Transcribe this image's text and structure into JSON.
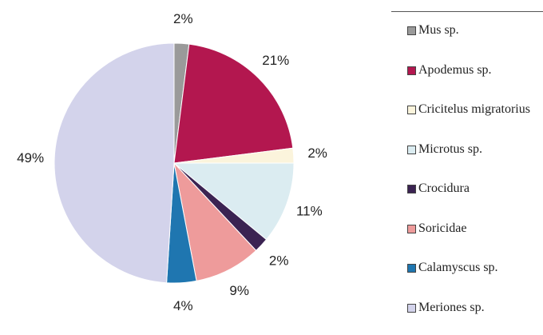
{
  "chart_data": {
    "type": "pie",
    "categories": [
      "Mus sp.",
      "Apodemus sp.",
      "Cricitelus migratorius",
      "Microtus sp.",
      "Crocidura",
      "Soricidae",
      "Calamyscus sp.",
      "Meriones sp."
    ],
    "values": [
      2,
      21,
      2,
      11,
      2,
      9,
      4,
      49
    ],
    "value_labels": [
      "2%",
      "21%",
      "2%",
      "11%",
      "2%",
      "9%",
      "4%",
      "49%"
    ],
    "colors": [
      "#9a9a9a",
      "#b3174f",
      "#fbf4dc",
      "#dbecf1",
      "#3b2352",
      "#ee9b9b",
      "#1f76b0",
      "#d3d3eb"
    ],
    "legend": "right"
  }
}
